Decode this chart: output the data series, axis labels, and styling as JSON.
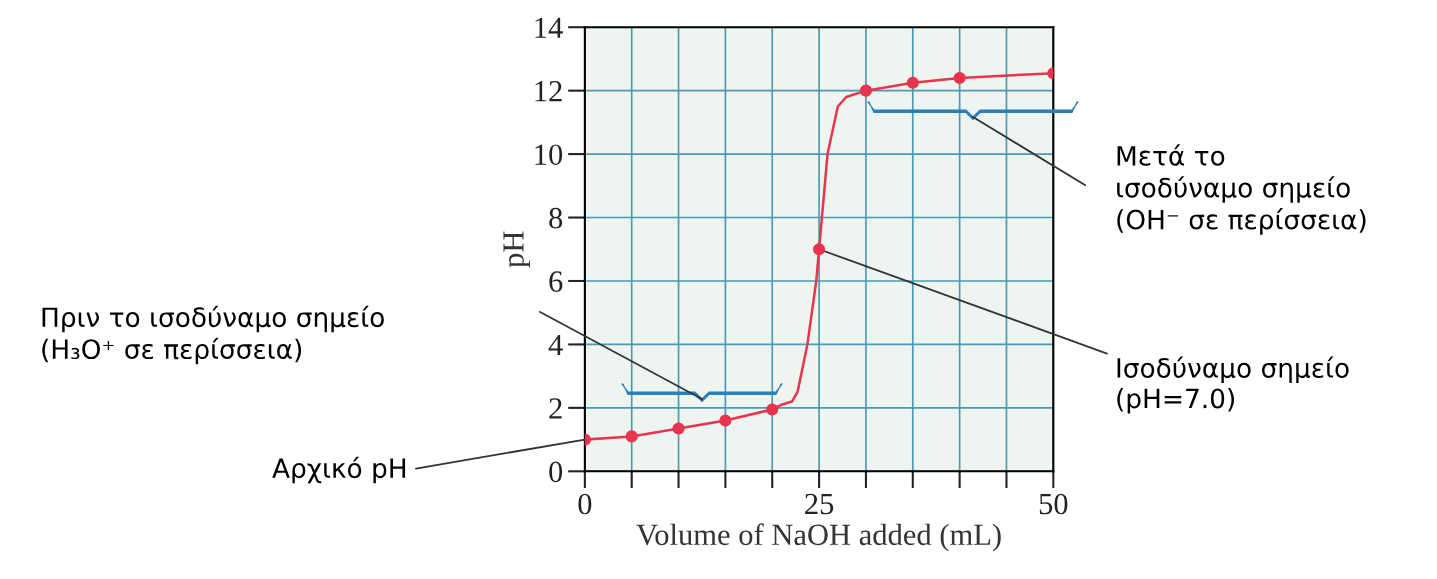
{
  "chart_data": {
    "type": "line",
    "xlabel": "Volume of NaOH added (mL)",
    "ylabel": "pH",
    "series": [
      {
        "color": "#e8344e",
        "marker": "none",
        "x": [
          0,
          5,
          10,
          15,
          20,
          21,
          22.1,
          22.7,
          23.75,
          24.7,
          25,
          25.3,
          25.9,
          27,
          27.9,
          30,
          35,
          40,
          50
        ],
        "values": [
          1.0,
          1.1,
          1.35,
          1.6,
          1.95,
          2.1,
          2.2,
          2.5,
          4,
          6,
          7.0,
          8,
          10,
          11.5,
          11.8,
          12.0,
          12.25,
          12.4,
          12.55
        ]
      },
      {
        "type": "scatter",
        "color": "#e8344e",
        "marker": "circle",
        "x": [
          0,
          5,
          10,
          15,
          20,
          25,
          30,
          35,
          40,
          50
        ],
        "values": [
          1.0,
          1.1,
          1.35,
          1.6,
          1.95,
          7.0,
          12.0,
          12.25,
          12.4,
          12.55
        ]
      }
    ],
    "xlim": [
      0,
      50
    ],
    "xticks": [
      0,
      {
        "value": 5,
        "label": null
      },
      {
        "value": 10,
        "label": null
      },
      {
        "value": 15,
        "label": null
      },
      {
        "value": 20,
        "label": null
      },
      25,
      {
        "value": 30,
        "label": null
      },
      {
        "value": 35,
        "label": null
      },
      {
        "value": 40,
        "label": null
      },
      {
        "value": 45,
        "label": null
      },
      50
    ],
    "ylim": [
      0,
      14
    ],
    "yticks": [
      0,
      2,
      4,
      6,
      8,
      10,
      12,
      14
    ],
    "grid": true,
    "legend": false,
    "annotations": [
      "Μετά το\nισοδύναμο σημείο\n(OH⁻ σε περίσσεια)",
      "Πριν το ισοδύναμο σημείο\n(H₃O⁺ σε περίσσεια)",
      {
        "text": "Ισοδύναμο σημείο\n(pH=7.0)",
        "x": 25,
        "y": 7.0
      },
      {
        "text": "Αρχικό pH",
        "x": 0,
        "y": 1.0
      }
    ]
  }
}
